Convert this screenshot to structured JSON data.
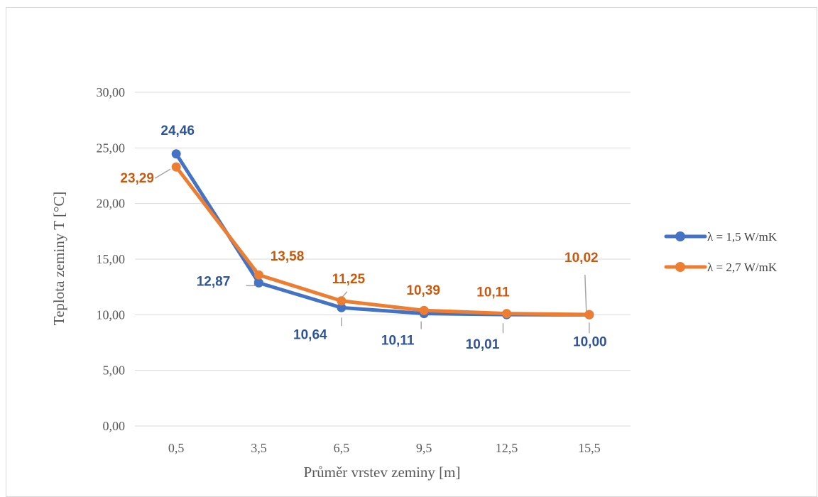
{
  "chart_data": {
    "type": "line",
    "title": "",
    "xlabel": "Průměr vrstev zeminy [m]",
    "ylabel": "Teplota zeminy T [°C]",
    "categories": [
      "0,5",
      "3,5",
      "6,5",
      "9,5",
      "12,5",
      "15,5"
    ],
    "ylim": [
      0,
      30
    ],
    "yticks": [
      "0,00",
      "5,00",
      "10,00",
      "15,00",
      "20,00",
      "25,00",
      "30,00"
    ],
    "grid": true,
    "legend_position": "right",
    "series": [
      {
        "name": "λ = 1,5 W/mK",
        "color": "#4472C4",
        "values": [
          24.46,
          12.87,
          10.64,
          10.11,
          10.01,
          10.0
        ],
        "labels": [
          "24,46",
          "12,87",
          "10,64",
          "10,11",
          "10,01",
          "10,00"
        ]
      },
      {
        "name": "λ = 2,7 W/mK",
        "color": "#ED7D31",
        "values": [
          23.29,
          13.58,
          11.25,
          10.39,
          10.11,
          10.02
        ],
        "labels": [
          "23,29",
          "13,58",
          "11,25",
          "10,39",
          "10,11",
          "10,02"
        ]
      }
    ]
  }
}
